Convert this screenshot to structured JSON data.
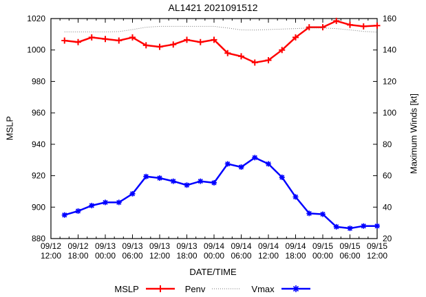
{
  "title": "AL1421 2021091512",
  "axes": {
    "ylabel": "MSLP",
    "y2label": "Maximum Winds [kt]",
    "xlabel": "DATE/TIME"
  },
  "chart_data": {
    "type": "line",
    "title": "AL1421 2021091512",
    "xlabel": "DATE/TIME",
    "ylabel": "MSLP",
    "y2label": "Maximum Winds [kt]",
    "ylim": [
      880,
      1020
    ],
    "y2lim": [
      20,
      160
    ],
    "x_range_hours": 72,
    "x_start": "09/12 12:00",
    "grid": false,
    "legend_position": "bottom-center",
    "y_ticks": [
      1020,
      1000,
      980,
      960,
      940,
      920,
      900,
      880
    ],
    "y2_ticks": [
      160,
      140,
      120,
      100,
      80,
      60,
      40,
      20
    ],
    "x_ticks": [
      {
        "date": "09/12",
        "time": "12:00"
      },
      {
        "date": "09/12",
        "time": "18:00"
      },
      {
        "date": "09/13",
        "time": "00:00"
      },
      {
        "date": "09/13",
        "time": "06:00"
      },
      {
        "date": "09/13",
        "time": "12:00"
      },
      {
        "date": "09/13",
        "time": "18:00"
      },
      {
        "date": "09/14",
        "time": "00:00"
      },
      {
        "date": "09/14",
        "time": "06:00"
      },
      {
        "date": "09/14",
        "time": "12:00"
      },
      {
        "date": "09/14",
        "time": "18:00"
      },
      {
        "date": "09/15",
        "time": "00:00"
      },
      {
        "date": "09/15",
        "time": "06:00"
      },
      {
        "date": "09/15",
        "time": "12:00"
      }
    ],
    "x": [
      3,
      6,
      9,
      12,
      15,
      18,
      21,
      24,
      27,
      30,
      33,
      36,
      39,
      42,
      45,
      48,
      51,
      54,
      57,
      60,
      63,
      66,
      69,
      72
    ],
    "series": [
      {
        "name": "MSLP",
        "axis": "y1",
        "color": "#ff0000",
        "style": "solid",
        "marker": "plus",
        "values": [
          1006,
          1005,
          1008,
          1007,
          1006,
          1008,
          1003,
          1002,
          1003.5,
          1006.5,
          1005,
          1006.5,
          998,
          996,
          992,
          993.5,
          1000,
          1008,
          1014.5,
          1014.5,
          1018.5,
          1016,
          1015,
          1015.5
        ]
      },
      {
        "name": "Penv",
        "axis": "y1",
        "color": "#777777",
        "style": "dotted",
        "marker": "none",
        "values": [
          1011.5,
          1011.5,
          1011.5,
          1011.5,
          1011.7,
          1013,
          1014.5,
          1015,
          1015,
          1015,
          1015,
          1015,
          1014,
          1012.8,
          1012.7,
          1013,
          1013.3,
          1013.6,
          1014,
          1014,
          1013.6,
          1012.8,
          1011.8,
          1011.4
        ]
      },
      {
        "name": "Vmax",
        "axis": "y2",
        "color": "#0000ff",
        "style": "solid",
        "marker": "asterisk",
        "values": [
          35,
          37.5,
          41,
          43,
          43,
          48.5,
          59.5,
          58.5,
          56.5,
          54,
          56.5,
          55.5,
          67.5,
          65.5,
          71.5,
          67.5,
          59,
          46.5,
          36,
          35.5,
          27.5,
          26.5,
          28,
          28
        ]
      }
    ]
  }
}
